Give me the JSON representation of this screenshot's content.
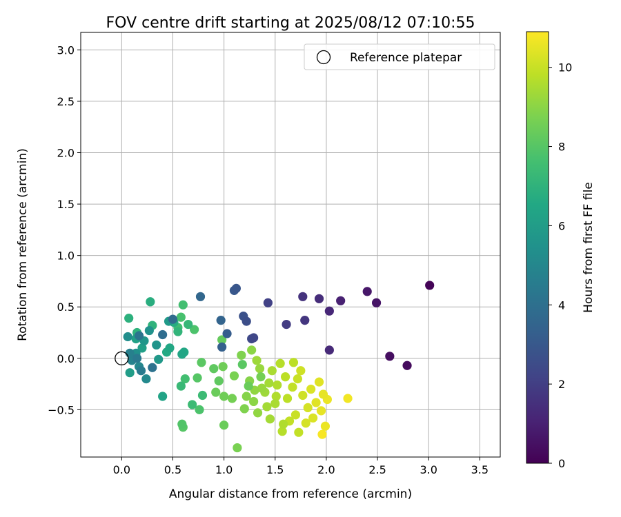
{
  "chart_data": {
    "type": "scatter",
    "title": "FOV centre drift starting at 2025/08/12 07:10:55",
    "xlabel": "Angular distance from reference (arcmin)",
    "ylabel": "Rotation from reference (arcmin)",
    "xlim": [
      -0.4,
      3.7
    ],
    "ylim": [
      -0.96,
      3.17
    ],
    "xticks": [
      0.0,
      0.5,
      1.0,
      1.5,
      2.0,
      2.5,
      3.0,
      3.5
    ],
    "xtick_labels": [
      "0.0",
      "0.5",
      "1.0",
      "1.5",
      "2.0",
      "2.5",
      "3.0",
      "3.5"
    ],
    "yticks": [
      -0.5,
      0.0,
      0.5,
      1.0,
      1.5,
      2.0,
      2.5,
      3.0
    ],
    "ytick_labels": [
      "−0.5",
      "0.0",
      "0.5",
      "1.0",
      "1.5",
      "2.0",
      "2.5",
      "3.0"
    ],
    "grid": true,
    "legend": {
      "position": "top-right",
      "entries": [
        "Reference platepar"
      ]
    },
    "colorbar": {
      "label": "Hours from first FF file",
      "min": 0,
      "max": 10.9,
      "ticks": [
        0,
        2,
        4,
        6,
        8,
        10
      ],
      "tick_labels": [
        "0",
        "2",
        "4",
        "6",
        "8",
        "10"
      ],
      "colormap": "viridis"
    },
    "reference_point": {
      "x": 0.0,
      "y": 0.0
    },
    "series": [
      {
        "name": "",
        "points": [
          [
            3.01,
            0.71,
            0.1
          ],
          [
            2.79,
            -0.07,
            0.3
          ],
          [
            2.62,
            0.02,
            0.4
          ],
          [
            2.49,
            0.54,
            0.6
          ],
          [
            2.4,
            0.65,
            0.7
          ],
          [
            2.14,
            0.56,
            1.0
          ],
          [
            2.03,
            0.46,
            1.2
          ],
          [
            2.03,
            0.08,
            1.3
          ],
          [
            1.93,
            0.58,
            1.4
          ],
          [
            1.77,
            0.6,
            1.6
          ],
          [
            1.79,
            0.37,
            1.7
          ],
          [
            1.61,
            0.33,
            1.9
          ],
          [
            1.43,
            0.54,
            2.1
          ],
          [
            1.29,
            0.2,
            2.3
          ],
          [
            1.27,
            0.19,
            2.4
          ],
          [
            1.22,
            0.36,
            2.6
          ],
          [
            1.19,
            0.41,
            2.7
          ],
          [
            1.12,
            0.68,
            2.9
          ],
          [
            1.1,
            0.66,
            3.0
          ],
          [
            1.03,
            0.24,
            3.2
          ],
          [
            0.98,
            0.11,
            3.3
          ],
          [
            0.97,
            0.37,
            3.5
          ],
          [
            0.77,
            0.6,
            3.6
          ],
          [
            0.5,
            0.38,
            3.8
          ],
          [
            0.4,
            0.23,
            3.9
          ],
          [
            0.3,
            -0.09,
            4.1
          ],
          [
            0.17,
            0.22,
            4.2
          ],
          [
            0.15,
            0.0,
            4.4
          ],
          [
            0.19,
            -0.12,
            4.5
          ],
          [
            0.08,
            0.05,
            4.7
          ],
          [
            0.1,
            -0.02,
            4.8
          ],
          [
            0.17,
            -0.08,
            5.0
          ],
          [
            0.24,
            -0.2,
            5.1
          ],
          [
            0.06,
            0.21,
            5.3
          ],
          [
            0.14,
            0.05,
            5.4
          ],
          [
            0.27,
            0.27,
            5.5
          ],
          [
            0.34,
            0.13,
            5.6
          ],
          [
            0.22,
            0.17,
            5.7
          ],
          [
            0.36,
            -0.01,
            5.8
          ],
          [
            0.46,
            0.36,
            5.9
          ],
          [
            0.08,
            -0.14,
            6.0
          ],
          [
            0.2,
            0.1,
            6.1
          ],
          [
            0.14,
            0.19,
            6.2
          ],
          [
            0.4,
            -0.37,
            6.3
          ],
          [
            0.59,
            0.04,
            6.4
          ],
          [
            0.47,
            0.1,
            6.5
          ],
          [
            0.61,
            0.06,
            6.5
          ],
          [
            0.44,
            0.06,
            6.6
          ],
          [
            0.51,
            0.35,
            6.7
          ],
          [
            0.28,
            0.55,
            6.8
          ],
          [
            0.07,
            0.39,
            6.9
          ],
          [
            0.15,
            0.25,
            7.0
          ],
          [
            0.3,
            0.32,
            7.0
          ],
          [
            0.55,
            0.26,
            7.1
          ],
          [
            0.65,
            0.33,
            7.2
          ],
          [
            0.58,
            -0.27,
            7.3
          ],
          [
            0.69,
            -0.45,
            7.4
          ],
          [
            0.79,
            -0.36,
            7.4
          ],
          [
            0.55,
            0.3,
            7.5
          ],
          [
            0.6,
            0.52,
            7.6
          ],
          [
            0.62,
            -0.2,
            7.6
          ],
          [
            0.58,
            0.4,
            7.7
          ],
          [
            0.71,
            0.28,
            7.8
          ],
          [
            0.76,
            -0.5,
            7.8
          ],
          [
            0.59,
            -0.64,
            7.9
          ],
          [
            0.6,
            -0.67,
            8.0
          ],
          [
            0.74,
            -0.19,
            8.0
          ],
          [
            0.78,
            -0.04,
            8.1
          ],
          [
            0.9,
            -0.1,
            8.2
          ],
          [
            0.95,
            -0.22,
            8.2
          ],
          [
            0.98,
            0.18,
            8.3
          ],
          [
            0.92,
            -0.33,
            8.4
          ],
          [
            1.0,
            -0.65,
            8.4
          ],
          [
            0.99,
            -0.08,
            8.5
          ],
          [
            1.0,
            -0.37,
            8.5
          ],
          [
            1.08,
            -0.39,
            8.6
          ],
          [
            1.1,
            -0.17,
            8.7
          ],
          [
            1.13,
            -0.87,
            8.7
          ],
          [
            1.17,
            0.03,
            8.8
          ],
          [
            1.2,
            -0.49,
            8.8
          ],
          [
            1.22,
            -0.37,
            8.9
          ],
          [
            1.25,
            -0.22,
            8.9
          ],
          [
            1.27,
            0.08,
            9.0
          ],
          [
            1.3,
            -0.31,
            9.1
          ],
          [
            1.33,
            -0.53,
            9.1
          ],
          [
            1.35,
            -0.1,
            9.2
          ],
          [
            1.37,
            -0.29,
            9.2
          ],
          [
            1.4,
            -0.33,
            9.3
          ],
          [
            1.42,
            -0.47,
            9.4
          ],
          [
            1.45,
            -0.59,
            9.4
          ],
          [
            1.47,
            -0.12,
            9.5
          ],
          [
            1.5,
            -0.44,
            9.5
          ],
          [
            1.52,
            -0.26,
            9.6
          ],
          [
            1.55,
            -0.05,
            9.7
          ],
          [
            1.57,
            -0.71,
            9.7
          ],
          [
            1.6,
            -0.18,
            9.8
          ],
          [
            1.62,
            -0.39,
            9.8
          ],
          [
            1.64,
            -0.61,
            9.9
          ],
          [
            1.67,
            -0.28,
            9.9
          ],
          [
            1.7,
            -0.55,
            10.0
          ],
          [
            1.72,
            -0.2,
            10.0
          ],
          [
            1.75,
            -0.12,
            10.1
          ],
          [
            1.77,
            -0.36,
            10.1
          ],
          [
            1.8,
            -0.63,
            10.2
          ],
          [
            1.82,
            -0.48,
            10.2
          ],
          [
            1.85,
            -0.3,
            10.3
          ],
          [
            1.87,
            -0.58,
            10.3
          ],
          [
            1.9,
            -0.43,
            10.4
          ],
          [
            1.93,
            -0.23,
            10.4
          ],
          [
            1.95,
            -0.51,
            10.5
          ],
          [
            1.97,
            -0.35,
            10.5
          ],
          [
            1.99,
            -0.66,
            10.6
          ],
          [
            2.01,
            -0.4,
            10.6
          ],
          [
            2.21,
            -0.39,
            10.7
          ],
          [
            1.96,
            -0.74,
            10.8
          ],
          [
            1.32,
            -0.02,
            9.3
          ],
          [
            1.36,
            -0.18,
            8.6
          ],
          [
            1.29,
            -0.42,
            9.0
          ],
          [
            1.44,
            -0.24,
            9.4
          ],
          [
            1.51,
            -0.37,
            9.6
          ],
          [
            1.68,
            -0.04,
            9.8
          ],
          [
            1.73,
            -0.72,
            9.9
          ],
          [
            1.58,
            -0.64,
            9.6
          ],
          [
            1.18,
            -0.06,
            8.1
          ],
          [
            1.24,
            -0.27,
            8.4
          ]
        ]
      }
    ]
  }
}
